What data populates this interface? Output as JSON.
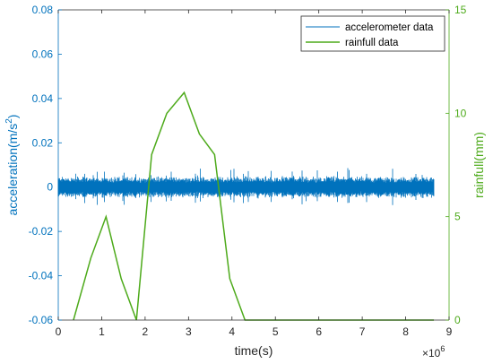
{
  "chart_data": {
    "type": "line",
    "title": "",
    "xlabel": "time(s)",
    "x_exponent_label": "×10",
    "x_exponent_power": "6",
    "xlim": [
      0,
      9
    ],
    "xticks": [
      0,
      1,
      2,
      3,
      4,
      5,
      6,
      7,
      8,
      9
    ],
    "xtick_labels": [
      "0",
      "1",
      "2",
      "3",
      "4",
      "5",
      "6",
      "7",
      "8",
      "9"
    ],
    "left_axis": {
      "label_prefix": "acceleration(m/s",
      "label_power": "2",
      "label_suffix": ")",
      "ylim": [
        -0.06,
        0.08
      ],
      "ticks": [
        -0.06,
        -0.04,
        -0.02,
        0,
        0.02,
        0.04,
        0.06,
        0.08
      ],
      "tick_labels": [
        "-0.06",
        "-0.04",
        "-0.02",
        "0",
        "0.02",
        "0.04",
        "0.06",
        "0.08"
      ],
      "color": "#0072BD"
    },
    "right_axis": {
      "label": "rainfull(mm)",
      "ylim": [
        0,
        15
      ],
      "ticks": [
        0,
        5,
        10,
        15
      ],
      "tick_labels": [
        "0",
        "5",
        "10",
        "15"
      ],
      "color": "#4DAA1A"
    },
    "series": [
      {
        "name": "accelerometer data",
        "axis": "left",
        "color": "#0072BD",
        "kind": "noise_band",
        "x_range": [
          0,
          8.65
        ],
        "center": 0,
        "typical_amplitude": 0.005,
        "peak_amplitude": 0.009
      },
      {
        "name": "rainfull data",
        "axis": "right",
        "color": "#4DAA1A",
        "x": [
          0.35,
          0.75,
          1.1,
          1.45,
          1.8,
          2.15,
          2.5,
          2.9,
          3.25,
          3.6,
          3.95,
          4.3,
          8.65
        ],
        "y": [
          0,
          3,
          5,
          2,
          0,
          8,
          10,
          11,
          9,
          8,
          2,
          0,
          0
        ]
      }
    ],
    "legend_position": "top-right",
    "grid": false
  }
}
